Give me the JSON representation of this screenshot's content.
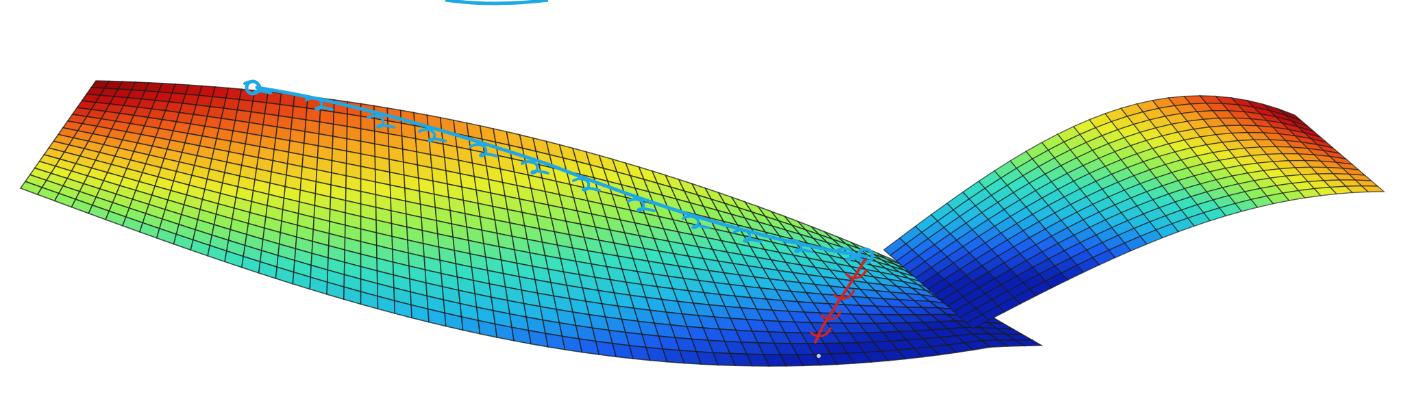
{
  "scene": {
    "description_visible_text": "",
    "colormap": [
      "#0a1fb0",
      "#1a5cf0",
      "#1fb8e8",
      "#36e0c0",
      "#8ff05a",
      "#e8ef2a",
      "#f7b21f",
      "#ee5a17",
      "#c80f0f",
      "#8a0505"
    ],
    "mesh_line_color": "#1a1a1a",
    "path_primary_color": "#1ea8e6",
    "path_secondary_color": "#d02424",
    "background": "#ffffff"
  }
}
